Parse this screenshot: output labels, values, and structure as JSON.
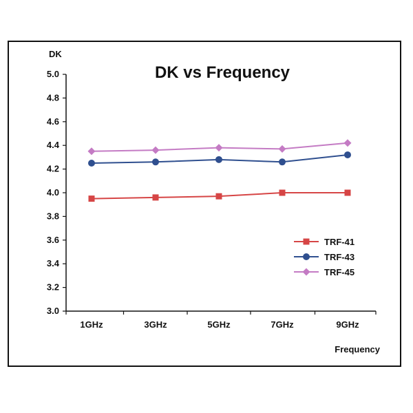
{
  "chart_data": {
    "type": "line",
    "title": "DK vs Frequency",
    "xlabel": "Frequency",
    "ylabel": "DK",
    "categories": [
      "1GHz",
      "3GHz",
      "5GHz",
      "7GHz",
      "9GHz"
    ],
    "ylim": [
      3.0,
      5.0
    ],
    "yticks": [
      3.0,
      3.2,
      3.4,
      3.6,
      3.8,
      4.0,
      4.2,
      4.4,
      4.6,
      4.8,
      5.0
    ],
    "grid": false,
    "legend_position": "bottom-right",
    "series": [
      {
        "name": "TRF-41",
        "values": [
          3.95,
          3.96,
          3.97,
          4.0,
          4.0
        ],
        "color": "#d64545",
        "marker": "square"
      },
      {
        "name": "TRF-43",
        "values": [
          4.25,
          4.26,
          4.28,
          4.26,
          4.32
        ],
        "color": "#2f4f8f",
        "marker": "circle"
      },
      {
        "name": "TRF-45",
        "values": [
          4.35,
          4.36,
          4.38,
          4.37,
          4.42
        ],
        "color": "#c47bc4",
        "marker": "diamond"
      }
    ]
  }
}
